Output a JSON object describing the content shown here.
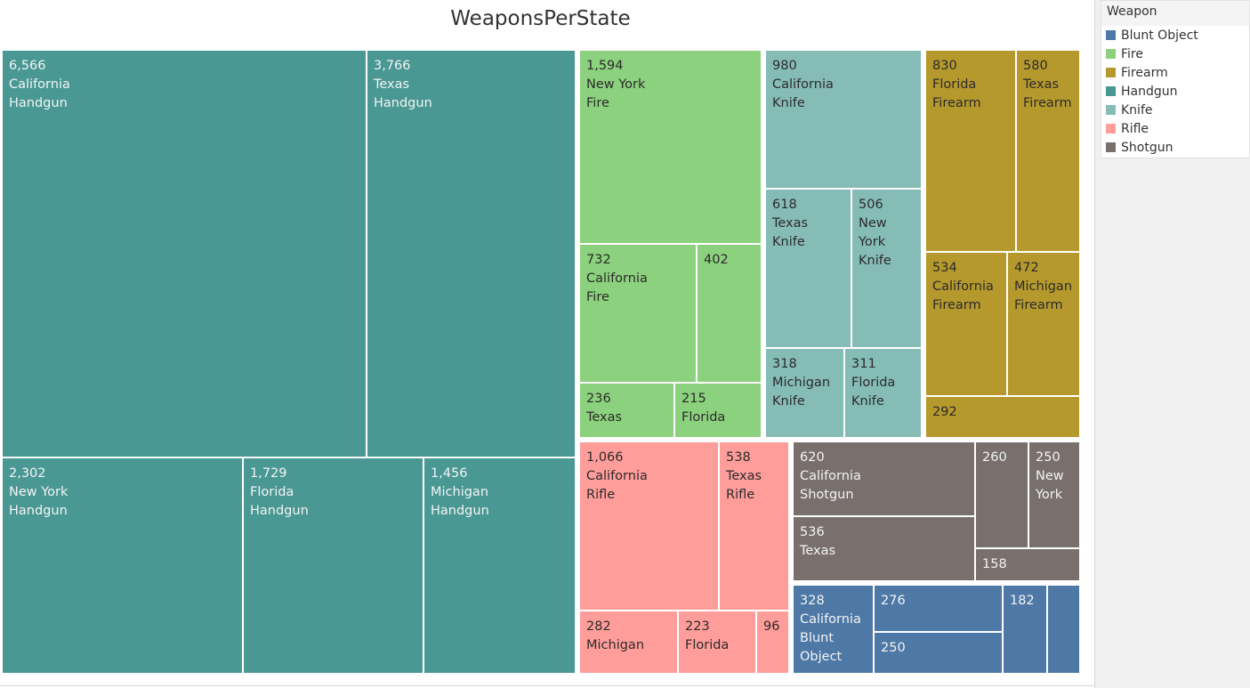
{
  "colors": {
    "Blunt Object": "#4e79a7",
    "Fire": "#8cd17d",
    "Firearm": "#b6992d",
    "Handgun": "#499894",
    "Knife": "#86bcb6",
    "Rifle": "#ff9d9a",
    "Shotgun": "#79706e"
  },
  "legend": {
    "title": "Weapon",
    "items": [
      "Blunt Object",
      "Fire",
      "Firearm",
      "Handgun",
      "Knife",
      "Rifle",
      "Shotgun"
    ]
  },
  "chart_data": {
    "type": "treemap",
    "title": "WeaponsPerState",
    "measure": "Count",
    "groups": [
      {
        "name": "Handgun",
        "cells": [
          {
            "value": 6566,
            "state": "California",
            "label": [
              "6,566",
              "California",
              "Handgun"
            ]
          },
          {
            "value": 3766,
            "state": "Texas",
            "label": [
              "3,766",
              "Texas",
              "Handgun"
            ]
          },
          {
            "value": 2302,
            "state": "New York",
            "label": [
              "2,302",
              "New York",
              "Handgun"
            ]
          },
          {
            "value": 1729,
            "state": "Florida",
            "label": [
              "1,729",
              "Florida",
              "Handgun"
            ]
          },
          {
            "value": 1456,
            "state": "Michigan",
            "label": [
              "1,456",
              "Michigan",
              "Handgun"
            ]
          }
        ]
      },
      {
        "name": "Fire",
        "cells": [
          {
            "value": 1594,
            "state": "New York",
            "label": [
              "1,594",
              "New York",
              "Fire"
            ]
          },
          {
            "value": 732,
            "state": "California",
            "label": [
              "732",
              "California",
              "Fire"
            ]
          },
          {
            "value": 402,
            "state": "",
            "label": [
              "402"
            ]
          },
          {
            "value": 236,
            "state": "Texas",
            "label": [
              "236",
              "Texas"
            ]
          },
          {
            "value": 215,
            "state": "Florida",
            "label": [
              "215",
              "Florida"
            ]
          }
        ]
      },
      {
        "name": "Knife",
        "cells": [
          {
            "value": 980,
            "state": "California",
            "label": [
              "980",
              "California",
              "Knife"
            ]
          },
          {
            "value": 618,
            "state": "Texas",
            "label": [
              "618",
              "Texas",
              "Knife"
            ]
          },
          {
            "value": 506,
            "state": "New York",
            "label": [
              "506",
              "New",
              "York",
              "Knife"
            ]
          },
          {
            "value": 318,
            "state": "Michigan",
            "label": [
              "318",
              "Michigan",
              "Knife"
            ]
          },
          {
            "value": 311,
            "state": "Florida",
            "label": [
              "311",
              "Florida",
              "Knife"
            ]
          }
        ]
      },
      {
        "name": "Firearm",
        "cells": [
          {
            "value": 830,
            "state": "Florida",
            "label": [
              "830",
              "Florida",
              "Firearm"
            ]
          },
          {
            "value": 580,
            "state": "Texas",
            "label": [
              "580",
              "Texas",
              "Firearm"
            ]
          },
          {
            "value": 534,
            "state": "California",
            "label": [
              "534",
              "California",
              "Firearm"
            ]
          },
          {
            "value": 472,
            "state": "Michigan",
            "label": [
              "472",
              "Michigan",
              "Firearm"
            ]
          },
          {
            "value": 292,
            "state": "",
            "label": [
              "292"
            ]
          }
        ]
      },
      {
        "name": "Rifle",
        "cells": [
          {
            "value": 1066,
            "state": "California",
            "label": [
              "1,066",
              "California",
              "Rifle"
            ]
          },
          {
            "value": 538,
            "state": "Texas",
            "label": [
              "538",
              "Texas",
              "Rifle"
            ]
          },
          {
            "value": 282,
            "state": "Michigan",
            "label": [
              "282",
              "Michigan"
            ]
          },
          {
            "value": 223,
            "state": "Florida",
            "label": [
              "223",
              "Florida"
            ]
          },
          {
            "value": 96,
            "state": "",
            "label": [
              "96"
            ]
          }
        ]
      },
      {
        "name": "Shotgun",
        "cells": [
          {
            "value": 620,
            "state": "California",
            "label": [
              "620",
              "California",
              "Shotgun"
            ]
          },
          {
            "value": 536,
            "state": "Texas",
            "label": [
              "536",
              "Texas"
            ]
          },
          {
            "value": 260,
            "state": "",
            "label": [
              "260"
            ]
          },
          {
            "value": 250,
            "state": "New York",
            "label": [
              "250",
              "New",
              "York"
            ]
          },
          {
            "value": 158,
            "state": "",
            "label": [
              "158"
            ]
          }
        ]
      },
      {
        "name": "Blunt Object",
        "cells": [
          {
            "value": 328,
            "state": "California",
            "label": [
              "328",
              "California",
              "Blunt",
              "Object"
            ]
          },
          {
            "value": 276,
            "state": "",
            "label": [
              "276"
            ]
          },
          {
            "value": 250,
            "state": "",
            "label": [
              "250"
            ]
          },
          {
            "value": 182,
            "state": "",
            "label": [
              "182"
            ]
          },
          {
            "value": null,
            "state": "",
            "label": []
          }
        ]
      }
    ]
  }
}
